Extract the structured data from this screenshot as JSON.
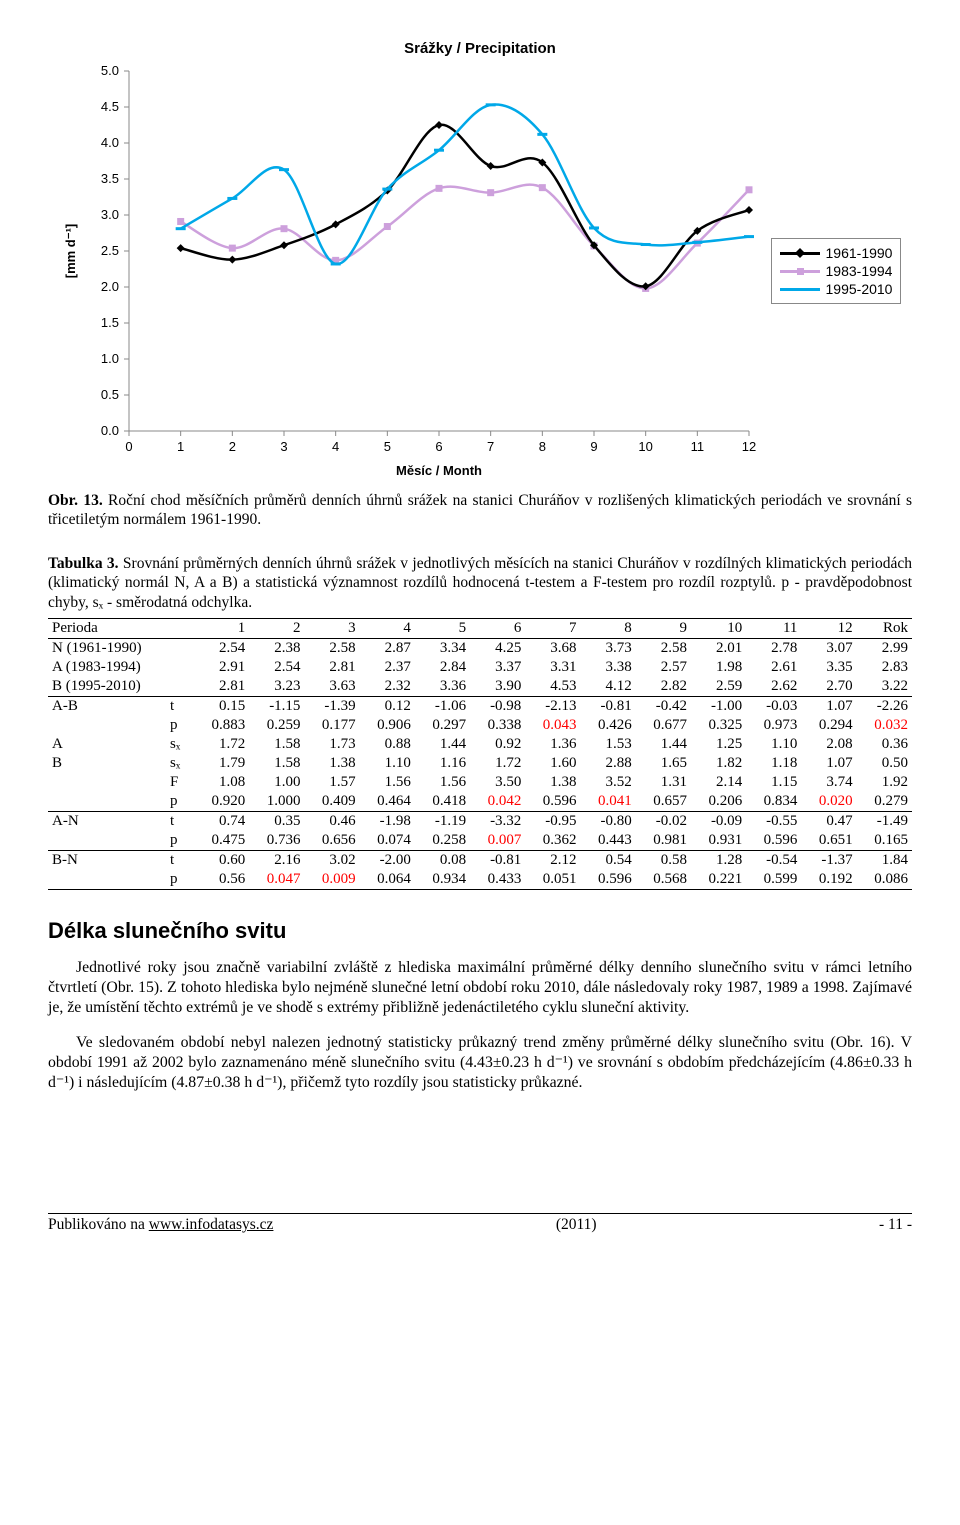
{
  "chart": {
    "title": "Srážky / Precipitation",
    "ylabel": "[mm d⁻¹]",
    "xlabel": "Měsíc / Month",
    "x_ticks": [
      0,
      1,
      2,
      3,
      4,
      5,
      6,
      7,
      8,
      9,
      10,
      11,
      12
    ],
    "y_ticks": [
      0.0,
      0.5,
      1.0,
      1.5,
      2.0,
      2.5,
      3.0,
      3.5,
      4.0,
      4.5,
      5.0
    ],
    "y_min": 0.0,
    "y_max": 5.0,
    "background_color": "#ffffff",
    "axis_color": "#888888",
    "tick_fontsize": 13,
    "label_fontsize": 13,
    "series": [
      {
        "label": "1961-1990",
        "color": "#000000",
        "marker_fill": "#000000",
        "marker_shape": "diamond",
        "line_width": 2.5,
        "values": [
          2.54,
          2.38,
          2.58,
          2.87,
          3.34,
          4.25,
          3.68,
          3.73,
          2.58,
          2.01,
          2.78,
          3.07
        ]
      },
      {
        "label": "1983-1994",
        "color": "#cda0dc",
        "marker_fill": "#cda0dc",
        "marker_shape": "square",
        "line_width": 2.5,
        "values": [
          2.91,
          2.54,
          2.81,
          2.37,
          2.84,
          3.37,
          3.31,
          3.38,
          2.57,
          1.98,
          2.61,
          3.35
        ]
      },
      {
        "label": "1995-2010",
        "color": "#00a8e8",
        "marker_fill": "#00a8e8",
        "marker_shape": "dash",
        "line_width": 2.5,
        "values": [
          2.81,
          3.23,
          3.63,
          2.32,
          3.36,
          3.9,
          4.53,
          4.12,
          2.82,
          2.59,
          2.62,
          2.7
        ]
      }
    ]
  },
  "fig_caption": {
    "label": "Obr. 13.",
    "text": " Roční chod měsíčních průměrů denních úhrnů srážek na stanici Churáňov v rozlišených klimatických periodách ve srovnání s třicetiletým normálem 1961-1990."
  },
  "table_caption": {
    "label": "Tabulka 3.",
    "text": " Srovnání průměrných denních úhrnů srážek v jednotlivých měsících na stanici Churáňov v rozdílných klimatických periodách (klimatický normál N, A a B) a statistická významnost rozdílů hodnocená t-testem a F-testem pro rozdíl rozptylů. p - pravděpodobnost chyby, sₓ - směrodatná odchylka."
  },
  "table": {
    "header": [
      "Perioda",
      "",
      "1",
      "2",
      "3",
      "4",
      "5",
      "6",
      "7",
      "8",
      "9",
      "10",
      "11",
      "12",
      "Rok"
    ],
    "red_cells": {
      "6": [
        7,
        13
      ],
      "9": [
        6,
        8,
        12
      ],
      "11": [
        6
      ],
      "13": [
        2,
        3
      ]
    },
    "rows": [
      [
        "N (1961-1990)",
        "",
        "2.54",
        "2.38",
        "2.58",
        "2.87",
        "3.34",
        "4.25",
        "3.68",
        "3.73",
        "2.58",
        "2.01",
        "2.78",
        "3.07",
        "2.99"
      ],
      [
        "A (1983-1994)",
        "",
        "2.91",
        "2.54",
        "2.81",
        "2.37",
        "2.84",
        "3.37",
        "3.31",
        "3.38",
        "2.57",
        "1.98",
        "2.61",
        "3.35",
        "2.83"
      ],
      [
        "B (1995-2010)",
        "",
        "2.81",
        "3.23",
        "3.63",
        "2.32",
        "3.36",
        "3.90",
        "4.53",
        "4.12",
        "2.82",
        "2.59",
        "2.62",
        "2.70",
        "3.22"
      ],
      [
        "A-B",
        "t",
        "0.15",
        "-1.15",
        "-1.39",
        "0.12",
        "-1.06",
        "-0.98",
        "-2.13",
        "-0.81",
        "-0.42",
        "-1.00",
        "-0.03",
        "1.07",
        "-2.26"
      ],
      [
        "",
        "p",
        "0.883",
        "0.259",
        "0.177",
        "0.906",
        "0.297",
        "0.338",
        "0.043",
        "0.426",
        "0.677",
        "0.325",
        "0.973",
        "0.294",
        "0.032"
      ],
      [
        "A",
        "sₓ",
        "1.72",
        "1.58",
        "1.73",
        "0.88",
        "1.44",
        "0.92",
        "1.36",
        "1.53",
        "1.44",
        "1.25",
        "1.10",
        "2.08",
        "0.36"
      ],
      [
        "B",
        "sₓ",
        "1.79",
        "1.58",
        "1.38",
        "1.10",
        "1.16",
        "1.72",
        "1.60",
        "2.88",
        "1.65",
        "1.82",
        "1.18",
        "1.07",
        "0.50"
      ],
      [
        "",
        "F",
        "1.08",
        "1.00",
        "1.57",
        "1.56",
        "1.56",
        "3.50",
        "1.38",
        "3.52",
        "1.31",
        "2.14",
        "1.15",
        "3.74",
        "1.92"
      ],
      [
        "",
        "p",
        "0.920",
        "1.000",
        "0.409",
        "0.464",
        "0.418",
        "0.042",
        "0.596",
        "0.041",
        "0.657",
        "0.206",
        "0.834",
        "0.020",
        "0.279"
      ],
      [
        "A-N",
        "t",
        "0.74",
        "0.35",
        "0.46",
        "-1.98",
        "-1.19",
        "-3.32",
        "-0.95",
        "-0.80",
        "-0.02",
        "-0.09",
        "-0.55",
        "0.47",
        "-1.49"
      ],
      [
        "",
        "p",
        "0.475",
        "0.736",
        "0.656",
        "0.074",
        "0.258",
        "0.007",
        "0.362",
        "0.443",
        "0.981",
        "0.931",
        "0.596",
        "0.651",
        "0.165"
      ],
      [
        "B-N",
        "t",
        "0.60",
        "2.16",
        "3.02",
        "-2.00",
        "0.08",
        "-0.81",
        "2.12",
        "0.54",
        "0.58",
        "1.28",
        "-0.54",
        "-1.37",
        "1.84"
      ],
      [
        "",
        "p",
        "0.56",
        "0.047",
        "0.009",
        "0.064",
        "0.934",
        "0.433",
        "0.051",
        "0.596",
        "0.568",
        "0.221",
        "0.599",
        "0.192",
        "0.086"
      ]
    ],
    "borders": {
      "header_top": true,
      "header_bottom": true,
      "after_row": [
        3,
        9,
        11
      ],
      "last_bottom": true
    }
  },
  "section_title": "Délka slunečního svitu",
  "paragraphs": [
    "Jednotlivé roky jsou značně variabilní zvláště z hlediska maximální průměrné délky denního slunečního svitu v rámci letního čtvrtletí (Obr. 15). Z tohoto hlediska bylo nejméně slunečné letní období roku 2010, dále následovaly roky 1987, 1989 a 1998. Zajímavé je, že umístění těchto extrémů je ve shodě s extrémy přibližně jedenáctiletého cyklu sluneční aktivity.",
    "Ve sledovaném období nebyl nalezen jednotný statisticky průkazný trend změny průměrné délky slunečního svitu (Obr. 16). V období 1991 až 2002 bylo zaznamenáno méně slunečního svitu (4.43±0.23 h d⁻¹) ve srovnání s obdobím předcházejícím (4.86±0.33 h d⁻¹) i následujícím (4.87±0.38 h d⁻¹), přičemž tyto rozdíly jsou statisticky průkazné."
  ],
  "footer": {
    "left_pre": "Publikováno na ",
    "left_link": "www.infodatasys.cz",
    "center": "(2011)",
    "right": "- 11 -"
  }
}
